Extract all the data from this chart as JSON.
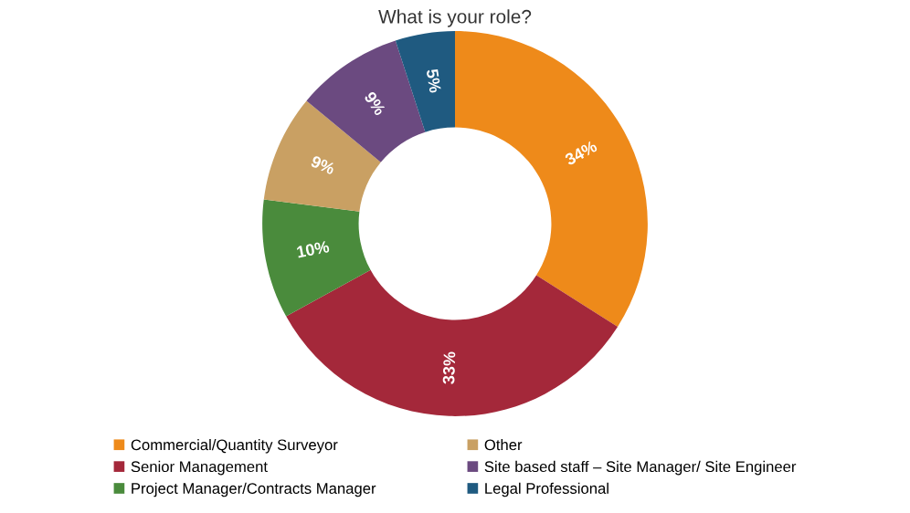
{
  "chart_data": {
    "type": "donut",
    "title": "What is your role?",
    "categories": [
      "Commercial/Quantity Surveyor",
      "Senior Management",
      "Project Manager/Contracts Manager",
      "Other",
      "Site based staff – Site Manager/ Site Engineer",
      "Legal Professional"
    ],
    "values": [
      34,
      33,
      10,
      9,
      9,
      5
    ],
    "colors": [
      "#ee8a1a",
      "#a4283a",
      "#4a8b3c",
      "#c9a063",
      "#6b4a80",
      "#1f5a80"
    ],
    "value_labels": [
      "34%",
      "33%",
      "10%",
      "9%",
      "9%",
      "5%"
    ],
    "legend": "bottom"
  }
}
